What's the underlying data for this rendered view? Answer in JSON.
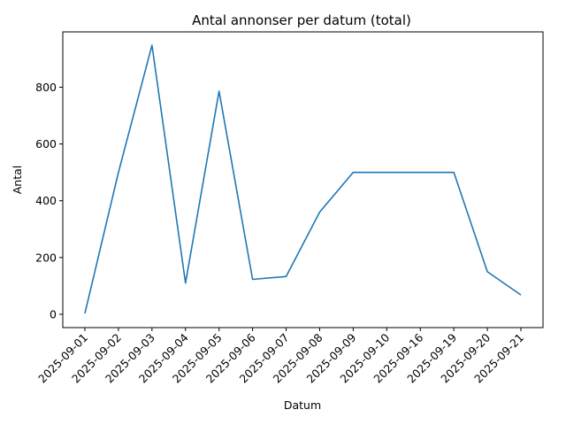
{
  "chart_data": {
    "type": "line",
    "title": "Antal annonser per datum (total)",
    "xlabel": "Datum",
    "ylabel": "Antal",
    "categories": [
      "2025-09-01",
      "2025-09-02",
      "2025-09-03",
      "2025-09-04",
      "2025-09-05",
      "2025-09-06",
      "2025-09-07",
      "2025-09-08",
      "2025-09-09",
      "2025-09-10",
      "2025-09-16",
      "2025-09-19",
      "2025-09-20",
      "2025-09-21"
    ],
    "series": [
      {
        "values": [
          3,
          500,
          948,
          110,
          786,
          123,
          133,
          360,
          500,
          500,
          500,
          500,
          150,
          68
        ]
      }
    ],
    "yticks": [
      0,
      200,
      400,
      600,
      800
    ],
    "ylim": [
      -47,
      995
    ],
    "grid": false,
    "colors": {
      "series": "#1f77b4"
    }
  }
}
